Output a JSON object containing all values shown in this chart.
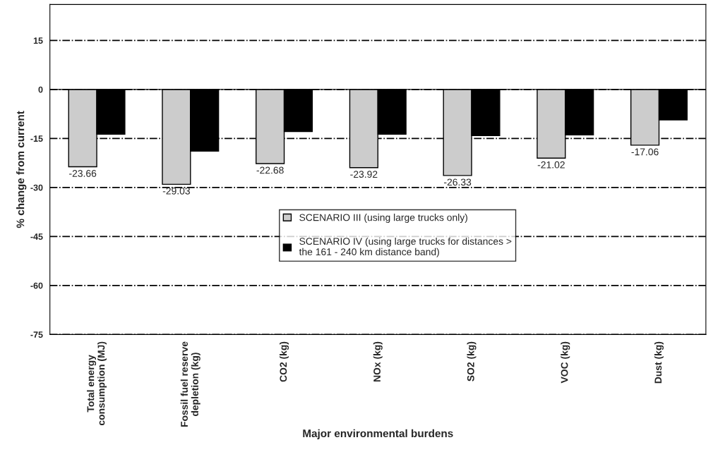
{
  "chart_data": {
    "type": "bar",
    "categories": [
      "Total energy\nconsumption (MJ)",
      "Fossil fuel reserve\ndepletion (kg)",
      "CO2 (kg)",
      "NOx (kg)",
      "SO2 (kg)",
      "VOC (kg)",
      "Dust (kg)"
    ],
    "series": [
      {
        "name": "SCENARIO III (using large trucks only)",
        "color": "#cccccc",
        "values": [
          -23.66,
          -29.03,
          -22.68,
          -23.92,
          -26.33,
          -21.02,
          -17.06
        ],
        "value_labels": [
          "-23.66",
          "-29.03",
          "-22.68",
          "-23.92",
          "-26.33",
          "-21.02",
          "-17.06"
        ]
      },
      {
        "name": "SCENARIO IV (using large trucks for distances >\nthe 161 - 240 km distance band)",
        "color": "#000000",
        "values": [
          -13.7,
          -18.9,
          -12.9,
          -13.7,
          -14.1,
          -13.9,
          -9.3
        ]
      }
    ],
    "xlabel": "Major environmental burdens",
    "ylabel": "% change from current",
    "ylim": [
      -75,
      26
    ],
    "yticks": [
      -75,
      -60,
      -45,
      -30,
      -15,
      0,
      15
    ],
    "grid": "y",
    "legend": "center",
    "line_style": "dashed"
  }
}
